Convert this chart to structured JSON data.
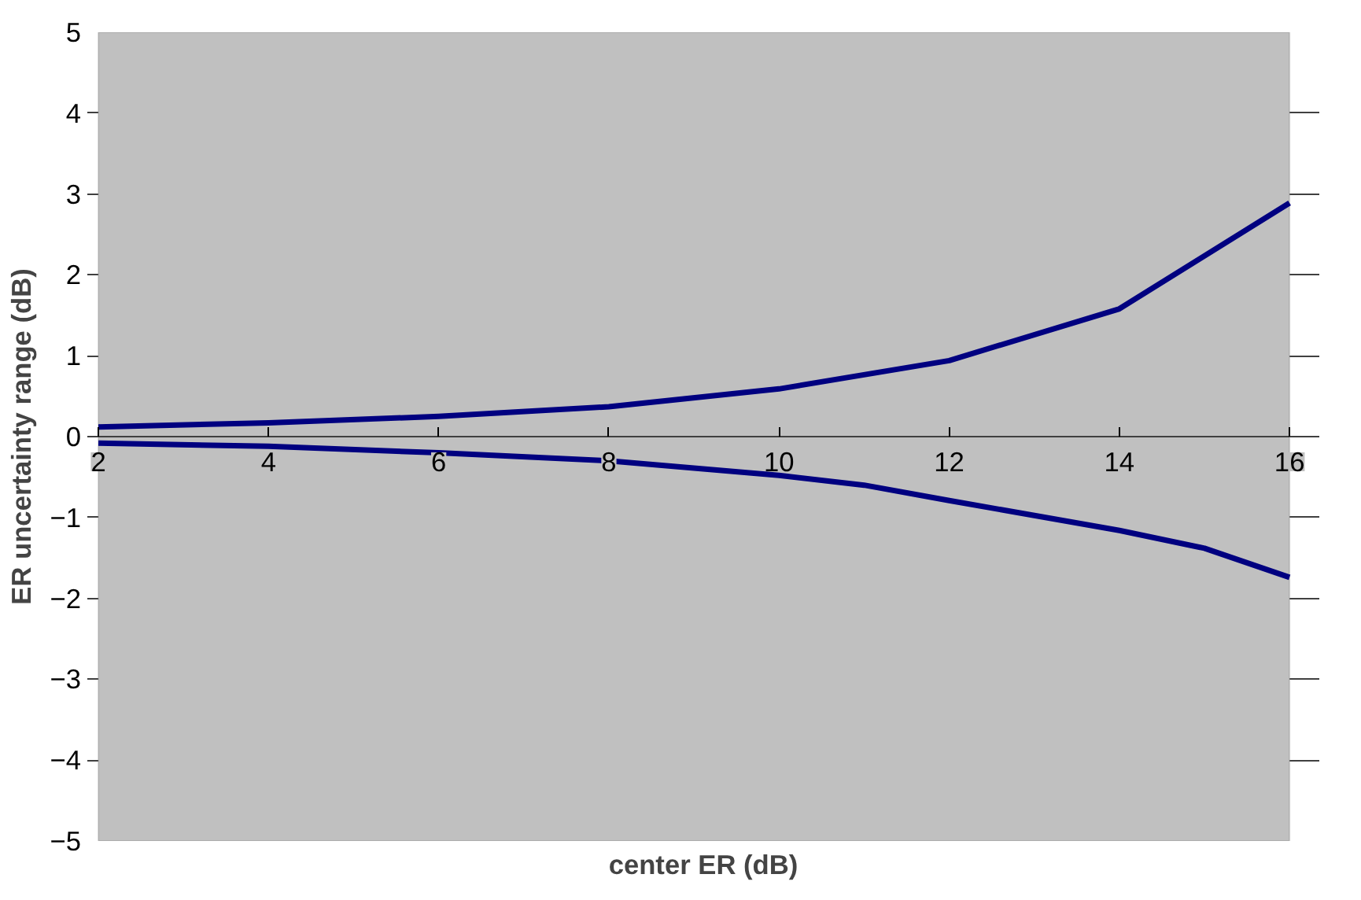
{
  "chart_data": {
    "type": "line",
    "xlabel": "center ER (dB)",
    "ylabel": "ER uncertainty range (dB)",
    "xlim": [
      2,
      16
    ],
    "xticks": [
      2,
      4,
      6,
      8,
      10,
      12,
      14,
      16
    ],
    "ylim": [
      -5,
      5
    ],
    "yticks": [
      -5,
      -4,
      -3,
      -2,
      -1,
      0,
      1,
      2,
      3,
      4,
      5
    ],
    "grid": "y",
    "line_style": "solid",
    "marker": "none",
    "series": [
      {
        "color": "#000080",
        "x": [
          2,
          4,
          6,
          8,
          10,
          12,
          14,
          16
        ],
        "values": [
          0.12,
          0.17,
          0.25,
          0.37,
          0.59,
          0.94,
          1.58,
          2.89
        ]
      },
      {
        "color": "#000080",
        "x": [
          2,
          4,
          6,
          8,
          10,
          11,
          12,
          14,
          15,
          16
        ],
        "values": [
          -0.08,
          -0.12,
          -0.2,
          -0.3,
          -0.48,
          -0.6,
          -0.79,
          -1.16,
          -1.38,
          -1.74
        ]
      }
    ]
  }
}
